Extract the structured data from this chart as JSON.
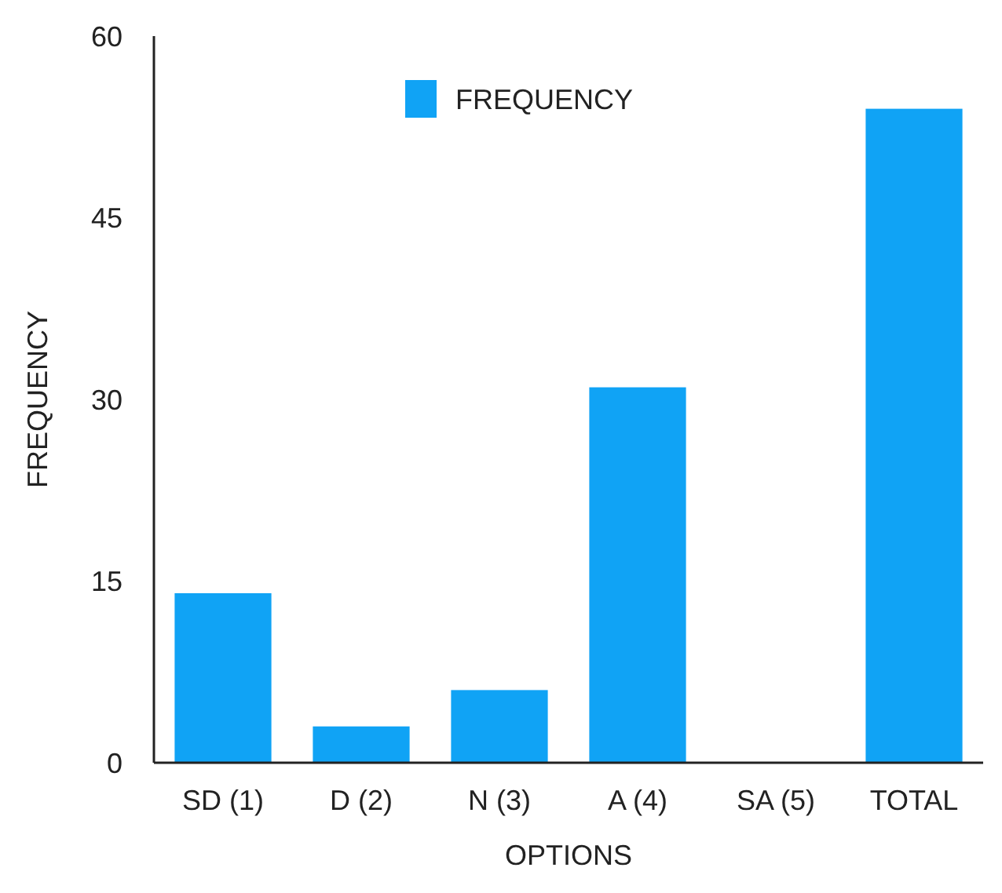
{
  "chart_data": {
    "type": "bar",
    "xlabel": "OPTIONS",
    "ylabel": "FREQUENCY",
    "categories": [
      "SD (1)",
      "D (2)",
      "N (3)",
      "A (4)",
      "SA (5)",
      "TOTAL"
    ],
    "series": [
      {
        "name": "FREQUENCY",
        "color": "#10a3f5",
        "values": [
          14,
          3,
          6,
          31,
          0,
          54
        ]
      }
    ],
    "ylim": [
      0,
      60
    ],
    "yticks": [
      0,
      15,
      30,
      45,
      60
    ],
    "legend": "top"
  }
}
